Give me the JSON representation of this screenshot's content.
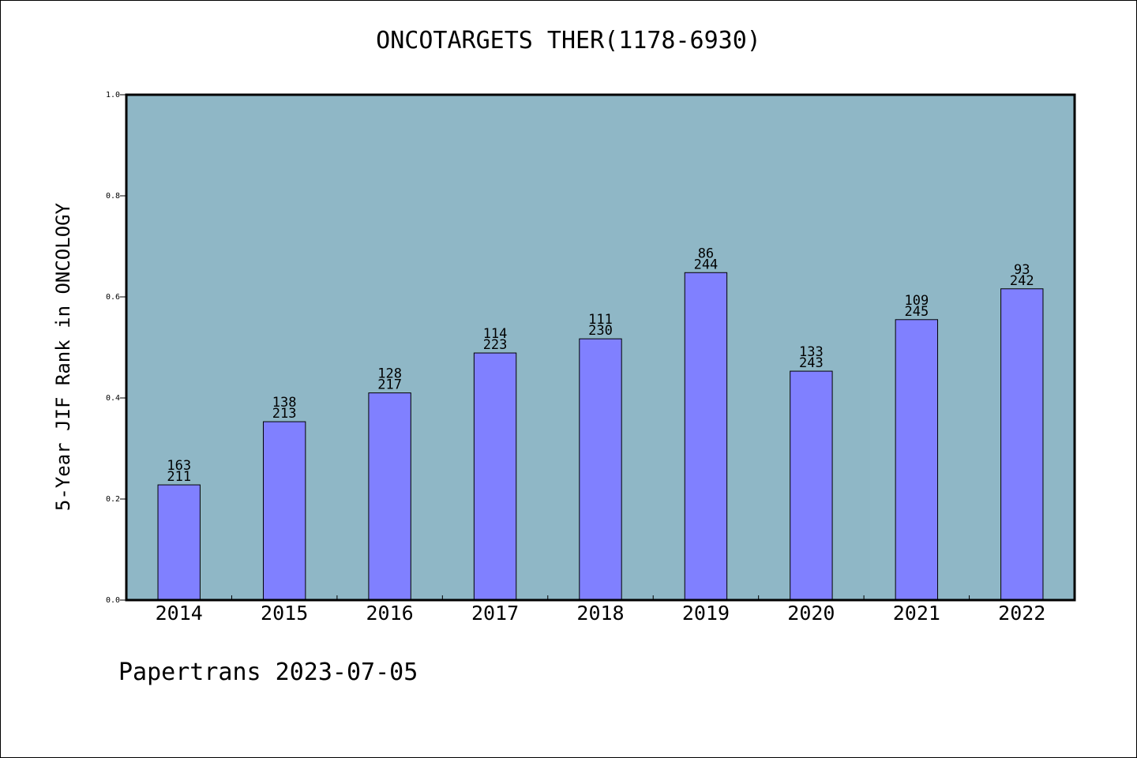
{
  "chart_data": {
    "type": "bar",
    "title": "ONCOTARGETS THER(1178-6930)",
    "xlabel": "",
    "ylabel": "5-Year JIF Rank in ONCOLOGY",
    "ylim": [
      0.0,
      1.0
    ],
    "yticks": [
      "0.0",
      "0.2",
      "0.4",
      "0.6",
      "0.8",
      "1.0"
    ],
    "grid": false,
    "categories": [
      "2014",
      "2015",
      "2016",
      "2017",
      "2018",
      "2019",
      "2020",
      "2021",
      "2022"
    ],
    "values": [
      0.228,
      0.353,
      0.41,
      0.489,
      0.517,
      0.648,
      0.453,
      0.555,
      0.616
    ],
    "rank_labels": [
      "163",
      "138",
      "128",
      "114",
      "111",
      "86",
      "133",
      "109",
      "93"
    ],
    "total_labels": [
      "211",
      "213",
      "217",
      "223",
      "230",
      "244",
      "243",
      "245",
      "242"
    ],
    "colors": {
      "plot_background": "#8FB7C6",
      "bar_fill": "#8080FF",
      "bar_edge": "#000000"
    }
  },
  "footer": "Papertrans 2023-07-05"
}
